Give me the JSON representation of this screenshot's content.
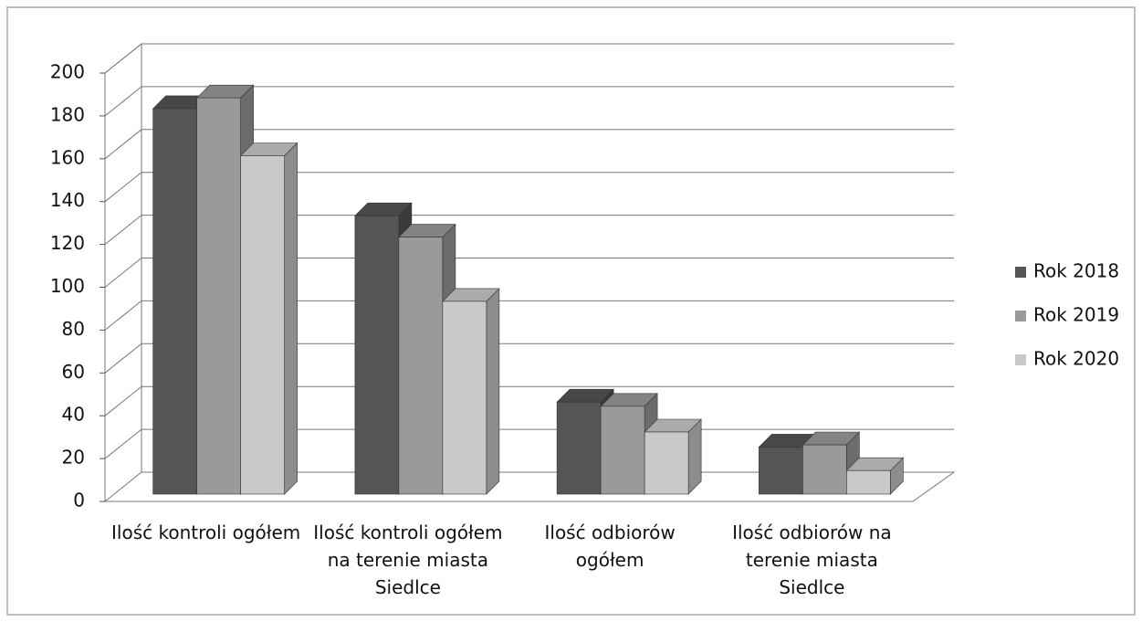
{
  "chart_data": {
    "type": "bar3d",
    "categories": [
      "Ilość kontroli ogółem",
      "Ilość kontroli ogółem na terenie miasta Siedlce",
      "Ilość odbiorów ogółem",
      "Ilość odbiorów na terenie miasta Siedlce"
    ],
    "series": [
      {
        "name": "Rok 2018",
        "color": "#555555",
        "values": [
          180,
          130,
          43,
          22
        ]
      },
      {
        "name": "Rok 2019",
        "color": "#9a9a9a",
        "values": [
          185,
          120,
          41,
          23
        ]
      },
      {
        "name": "Rok 2020",
        "color": "#c9c9c9",
        "values": [
          158,
          90,
          29,
          11
        ]
      }
    ],
    "ylim": [
      0,
      200
    ],
    "yticks": [
      0,
      20,
      40,
      60,
      80,
      100,
      120,
      140,
      160,
      180,
      200
    ],
    "grid": true,
    "legend": "right"
  }
}
